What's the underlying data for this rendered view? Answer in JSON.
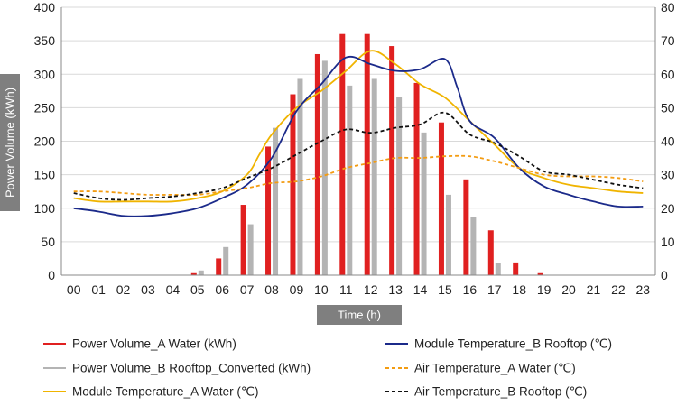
{
  "chart_data": {
    "type": "bar",
    "xlabel": "Time (h)",
    "ylabel": "Power Volume (kWh)",
    "ylim": [
      0,
      400
    ],
    "y2lim": [
      0,
      80
    ],
    "yticks": [
      0,
      50,
      100,
      150,
      200,
      250,
      300,
      350,
      400
    ],
    "y2ticks": [
      0,
      10,
      20,
      30,
      40,
      50,
      60,
      70,
      80
    ],
    "grid": true,
    "legend_position": "bottom",
    "categories": [
      "00",
      "01",
      "02",
      "03",
      "04",
      "05",
      "06",
      "07",
      "08",
      "09",
      "10",
      "11",
      "12",
      "13",
      "14",
      "15",
      "16",
      "17",
      "18",
      "19",
      "20",
      "21",
      "22",
      "23"
    ],
    "bar_series": [
      {
        "name": "Power Volume_A Water (kWh)",
        "axis": "left",
        "color": "#e02020",
        "values": [
          0,
          0,
          0,
          0,
          0,
          3,
          25,
          105,
          192,
          270,
          330,
          360,
          360,
          342,
          287,
          228,
          143,
          67,
          19,
          3,
          0,
          0,
          0,
          0
        ]
      },
      {
        "name": "Power Volume_B Rooftop_Converted (kWh)",
        "axis": "left",
        "color": "#b4b4b4",
        "values": [
          0,
          0,
          0,
          0,
          0,
          7,
          42,
          76,
          220,
          293,
          320,
          283,
          293,
          266,
          213,
          120,
          87,
          18,
          0,
          0,
          0,
          0,
          0,
          0
        ]
      }
    ],
    "line_series": [
      {
        "name": "Module Temperature_A Water (℃)",
        "axis": "right",
        "color": "#f0b400",
        "dash": "solid",
        "x": [
          0,
          1,
          2,
          3,
          4,
          5,
          6,
          7,
          7.5,
          8,
          9,
          10,
          11,
          12,
          13,
          14,
          15,
          16,
          17,
          18,
          19,
          20,
          21,
          22,
          23
        ],
        "values": [
          23,
          22,
          22,
          22,
          22,
          23,
          25,
          30,
          36,
          42,
          50,
          55,
          61,
          67,
          63,
          57,
          53,
          46,
          39,
          32,
          29,
          27,
          26,
          25,
          24.5
        ]
      },
      {
        "name": "Module Temperature_B Rooftop (℃)",
        "axis": "right",
        "color": "#1b2a8a",
        "dash": "solid",
        "x": [
          0,
          1,
          2,
          3,
          4,
          5,
          6,
          7,
          8,
          9,
          10,
          11,
          12,
          13,
          14,
          15,
          15.5,
          16,
          17,
          18,
          19,
          20,
          21,
          22,
          23
        ],
        "values": [
          20,
          19,
          17.7,
          17.7,
          18.5,
          20,
          23,
          27,
          35,
          49,
          57,
          65,
          63,
          61,
          61.5,
          64.5,
          56,
          46,
          41,
          32,
          26.5,
          24,
          22,
          20.5,
          20.5
        ]
      },
      {
        "name": "Air Temperature_A Water (℃)",
        "axis": "right",
        "color": "#f39c12",
        "dash": "dash",
        "x": [
          0,
          1,
          2,
          3,
          4,
          5,
          6,
          7,
          8,
          9,
          10,
          11,
          12,
          13,
          14,
          15,
          16,
          17,
          18,
          19,
          20,
          21,
          22,
          23
        ],
        "values": [
          25,
          25,
          24.5,
          24,
          24,
          24,
          25,
          26,
          27.5,
          28,
          29.5,
          32,
          33.5,
          35,
          35,
          35.5,
          35.5,
          34,
          32,
          30,
          29.5,
          29.5,
          29,
          28
        ]
      },
      {
        "name": "Air Temperature_B Rooftop (℃)",
        "axis": "right",
        "color": "#111111",
        "dash": "dash",
        "x": [
          0,
          1,
          2,
          3,
          4,
          5,
          6,
          7,
          8,
          9,
          10,
          11,
          12,
          13,
          14,
          15,
          16,
          17,
          18,
          19,
          20,
          21,
          22,
          23
        ],
        "values": [
          24.5,
          23,
          22.5,
          23,
          23.5,
          24.5,
          26,
          29,
          32,
          36,
          40,
          43.5,
          42.5,
          44,
          45,
          48.5,
          42,
          39.5,
          35.5,
          31,
          30,
          28.5,
          27,
          26
        ]
      }
    ]
  }
}
